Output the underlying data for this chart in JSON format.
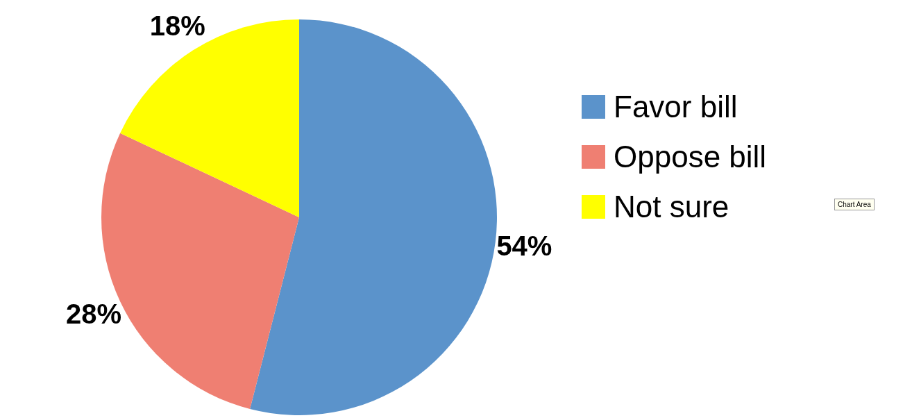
{
  "chart_data": {
    "type": "pie",
    "categories": [
      "Favor bill",
      "Oppose bill",
      "Not sure"
    ],
    "values": [
      54,
      28,
      18
    ],
    "value_labels": [
      "54%",
      "28%",
      "18%"
    ],
    "colors": [
      "#5b93cb",
      "#ef7f72",
      "#ffff00"
    ],
    "legend": "right",
    "annotations": [
      "Chart Area"
    ]
  }
}
